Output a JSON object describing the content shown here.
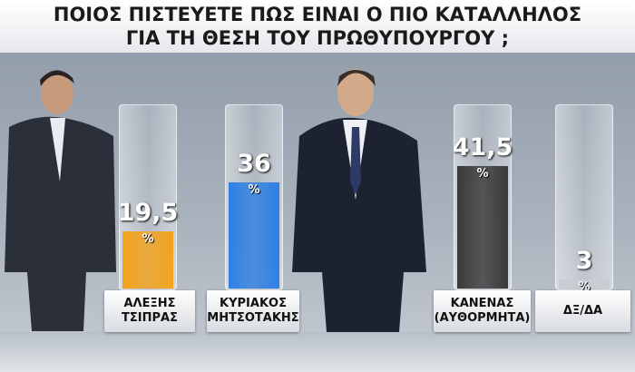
{
  "chart_data": {
    "type": "bar",
    "title": [
      "ΠΟΙΟΣ ΠΙΣΤΕΥΕΤΕ ΠΩΣ ΕΙΝΑΙ Ο ΠΙΟ ΚΑΤΑΛΛΗΛΟΣ",
      "ΓΙΑ ΤΗ ΘΕΣΗ ΤΟΥ ΠΡΩΘΥΠΟΥΡΓΟΥ ;"
    ],
    "categories": [
      "ΑΛΕΞΗΣ ΤΣΙΠΡΑΣ",
      "ΚΥΡΙΑΚΟΣ ΜΗΤΣΟΤΑΚΗΣ",
      "ΚΑΝΕΝΑΣ (ΑΥΘΟΡΜΗΤΑ)",
      "ΔΞ/ΔΑ"
    ],
    "values": [
      19.5,
      36,
      41.5,
      3
    ],
    "value_labels": [
      "19,5",
      "36",
      "41,5",
      "3"
    ],
    "unit_label": "%",
    "colors": [
      "#f3a21c",
      "#2f7fe3",
      "#3a3a3a",
      "#c9ccd2"
    ],
    "ylim": [
      0,
      62
    ]
  }
}
